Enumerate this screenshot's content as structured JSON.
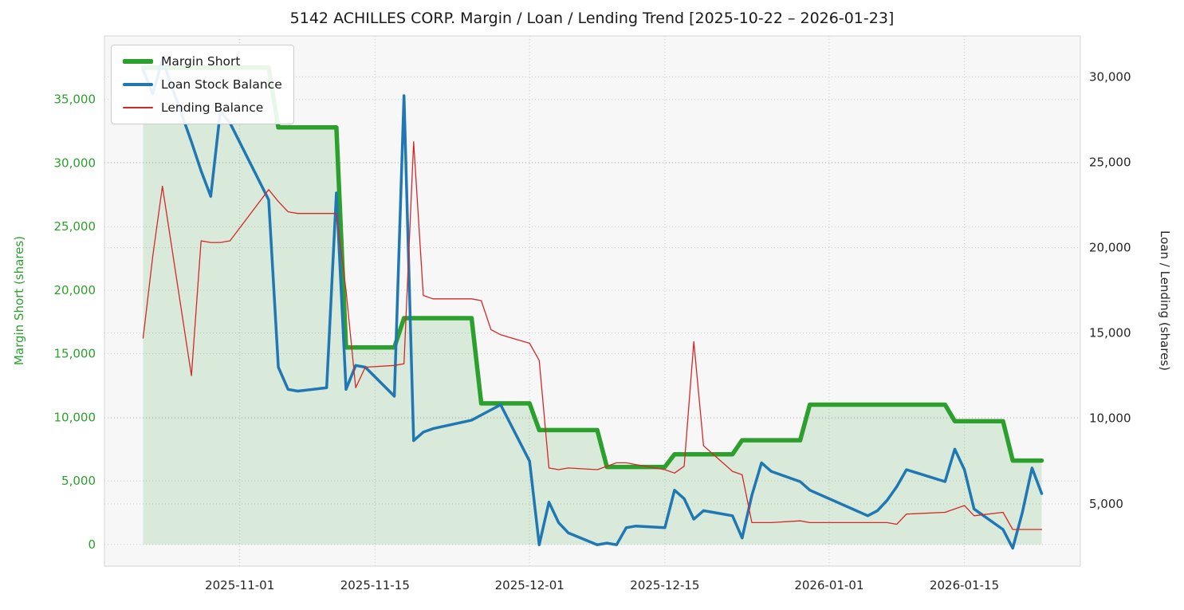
{
  "chart_data": {
    "type": "line",
    "title": "5142 ACHILLES CORP. Margin / Loan / Lending Trend [2025-10-22 – 2026-01-23]",
    "grid": true,
    "legend_position": "upper-left",
    "x_axis": {
      "domain": [
        "2025-10-18",
        "2026-01-27"
      ],
      "tick_labels": [
        "2025-11-01",
        "2025-11-15",
        "2025-12-01",
        "2025-12-15",
        "2026-01-01",
        "2026-01-15"
      ]
    },
    "left_axis": {
      "label": "Margin Short (shares)",
      "color": "#2ca02c",
      "ticks": [
        0,
        5000,
        10000,
        15000,
        20000,
        25000,
        30000,
        35000
      ],
      "ylim": [
        -1700,
        40000
      ]
    },
    "right_axis": {
      "label": "Loan / Lending (shares)",
      "color": "#262626",
      "ticks": [
        5000,
        10000,
        15000,
        20000,
        25000,
        30000
      ],
      "ylim": [
        1350,
        32400
      ]
    },
    "dates": [
      "2025-10-22",
      "2025-10-23",
      "2025-10-24",
      "2025-10-27",
      "2025-10-28",
      "2025-10-29",
      "2025-10-30",
      "2025-10-31",
      "2025-11-04",
      "2025-11-05",
      "2025-11-06",
      "2025-11-07",
      "2025-11-10",
      "2025-11-11",
      "2025-11-12",
      "2025-11-13",
      "2025-11-14",
      "2025-11-17",
      "2025-11-18",
      "2025-11-19",
      "2025-11-20",
      "2025-11-21",
      "2025-11-25",
      "2025-11-26",
      "2025-11-27",
      "2025-11-28",
      "2025-12-01",
      "2025-12-02",
      "2025-12-03",
      "2025-12-04",
      "2025-12-05",
      "2025-12-08",
      "2025-12-09",
      "2025-12-10",
      "2025-12-11",
      "2025-12-12",
      "2025-12-15",
      "2025-12-16",
      "2025-12-17",
      "2025-12-18",
      "2025-12-19",
      "2025-12-22",
      "2025-12-23",
      "2025-12-24",
      "2025-12-25",
      "2025-12-26",
      "2025-12-29",
      "2025-12-30",
      "2026-01-05",
      "2026-01-06",
      "2026-01-07",
      "2026-01-08",
      "2026-01-09",
      "2026-01-13",
      "2026-01-14",
      "2026-01-15",
      "2026-01-16",
      "2026-01-19",
      "2026-01-20",
      "2026-01-21",
      "2026-01-22",
      "2026-01-23"
    ],
    "series": [
      {
        "name": "Margin Short",
        "axis": "left",
        "color": "#2ca02c",
        "width": 5.5,
        "fill": true,
        "fill_opacity": 0.15,
        "values": [
          37500,
          37500,
          37500,
          37500,
          37500,
          37500,
          37500,
          37500,
          37500,
          32800,
          32800,
          32800,
          32800,
          32800,
          15500,
          15500,
          15500,
          15500,
          17800,
          17800,
          17800,
          17800,
          17800,
          11100,
          11100,
          11100,
          11100,
          9000,
          9000,
          9000,
          9000,
          9000,
          6100,
          6100,
          6100,
          6100,
          6100,
          7100,
          7100,
          7100,
          7100,
          7100,
          8200,
          8200,
          8200,
          8200,
          8200,
          11000,
          11000,
          11000,
          11000,
          11000,
          11000,
          11000,
          9700,
          9700,
          9700,
          9700,
          6600,
          6600,
          6600,
          6600
        ]
      },
      {
        "name": "Loan Stock Balance",
        "axis": "right",
        "color": "#1f77b4",
        "width": 3.5,
        "fill": false,
        "values": [
          30400,
          29000,
          31000,
          26200,
          24500,
          23000,
          28000,
          27300,
          22800,
          13000,
          11700,
          11600,
          11800,
          23200,
          11700,
          13100,
          13000,
          11300,
          28900,
          8700,
          9200,
          9400,
          9900,
          10200,
          10500,
          10800,
          7500,
          2600,
          5100,
          3900,
          3300,
          2600,
          2700,
          2600,
          3600,
          3700,
          3600,
          5800,
          5300,
          4100,
          4600,
          4300,
          3000,
          5500,
          7400,
          6900,
          6300,
          5800,
          4300,
          4600,
          5200,
          6000,
          7000,
          6300,
          8200,
          7000,
          4700,
          3500,
          2400,
          4500,
          7100,
          5600
        ]
      },
      {
        "name": "Lending Balance",
        "axis": "right",
        "color": "#d62728",
        "width": 1.3,
        "fill": false,
        "values": [
          14700,
          19500,
          23600,
          12500,
          20400,
          20300,
          20300,
          20400,
          23400,
          22700,
          22100,
          22000,
          22000,
          22000,
          17500,
          11800,
          13000,
          13100,
          13200,
          26200,
          17200,
          17000,
          17000,
          16900,
          15200,
          14900,
          14400,
          13400,
          7100,
          7000,
          7100,
          7000,
          7200,
          7400,
          7400,
          7300,
          7000,
          6800,
          7200,
          14500,
          8400,
          6900,
          6700,
          3900,
          3900,
          3900,
          4000,
          3900,
          3900,
          3900,
          3900,
          3800,
          4400,
          4500,
          4700,
          4900,
          4300,
          4500,
          3500,
          3500,
          3500,
          3500
        ]
      }
    ]
  }
}
